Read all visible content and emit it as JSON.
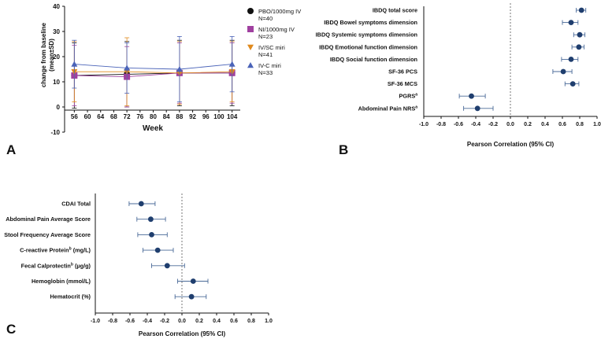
{
  "chart_data": [
    {
      "panel": "A",
      "type": "line",
      "ylabel": "change from baseline (mean±SD)",
      "xlabel": "Week",
      "xlim": [
        54,
        106
      ],
      "xticks": [
        56,
        60,
        64,
        68,
        72,
        76,
        80,
        84,
        88,
        92,
        96,
        100,
        104
      ],
      "ylim": [
        -10,
        40
      ],
      "yticks": [
        -10,
        0,
        10,
        20,
        30,
        40
      ],
      "series": [
        {
          "name": "PBO/1000mg IV",
          "n": "N=40",
          "color": "#111111",
          "marker": "circle",
          "x": [
            56,
            72,
            88,
            104
          ],
          "y": [
            12.5,
            13,
            13.5,
            13.5
          ],
          "sd": [
            13,
            13,
            13,
            13
          ]
        },
        {
          "name": "NI/1000mg IV",
          "n": "N=23",
          "color": "#a040a0",
          "marker": "square",
          "x": [
            56,
            72,
            88,
            104
          ],
          "y": [
            12.5,
            12,
            13.5,
            13.5
          ],
          "sd": [
            12,
            12,
            12,
            12
          ]
        },
        {
          "name": "IV/SC miri",
          "n": "N=41",
          "color": "#e08a1e",
          "marker": "triangle-down",
          "x": [
            56,
            72,
            88,
            104
          ],
          "y": [
            14,
            14,
            13.5,
            14
          ],
          "sd": [
            12,
            13.5,
            12.5,
            12
          ]
        },
        {
          "name": "IV-C miri",
          "n": "N=33",
          "color": "#4a63b8",
          "marker": "triangle-up",
          "x": [
            56,
            72,
            88,
            104
          ],
          "y": [
            17,
            15.5,
            15,
            17
          ],
          "sd": [
            9.5,
            10,
            13,
            11
          ]
        }
      ]
    },
    {
      "panel": "B",
      "type": "scatter",
      "xlabel": "Pearson Correlation (95% CI)",
      "xlim": [
        -1.0,
        1.0
      ],
      "xticks": [
        "-1.0",
        "-0.8",
        "-0.6",
        "-0.4",
        "-0.2",
        "0.0",
        "0.2",
        "0.4",
        "0.6",
        "0.8",
        "1.0"
      ],
      "categories": [
        "IBDQ total score",
        "IBDQ Bowel symptoms dimension",
        "IBDQ Systemic symptoms dimension",
        "IBDQ Emotional function dimension",
        "IBDQ Social function dimension",
        "SF-36 PCS",
        "SF-36 MCS",
        "PGRSa",
        "Abdominal Pain NRSa"
      ],
      "estimate": [
        0.82,
        0.7,
        0.8,
        0.79,
        0.7,
        0.61,
        0.72,
        -0.45,
        -0.38
      ],
      "ci_low": [
        0.76,
        0.6,
        0.73,
        0.71,
        0.59,
        0.49,
        0.63,
        -0.59,
        -0.54
      ],
      "ci_high": [
        0.87,
        0.78,
        0.86,
        0.85,
        0.78,
        0.71,
        0.79,
        -0.29,
        -0.2
      ]
    },
    {
      "panel": "C",
      "type": "scatter",
      "xlabel": "Pearson Correlation (95% CI)",
      "xlim": [
        -1.0,
        1.0
      ],
      "xticks": [
        "-1.0",
        "-0.8",
        "-0.6",
        "-0.4",
        "-0.2",
        "0.0",
        "0.2",
        "0.4",
        "0.6",
        "0.8",
        "1.0"
      ],
      "categories": [
        "CDAI Total",
        "Abdominal Pain Average Score",
        "Stool Frequency Average Score",
        "C-reactive Proteinb (mg/L)",
        "Fecal Calprotectinb (µg/g)",
        "Hemoglobin (mmol/L)",
        "Hematocrit (%)"
      ],
      "estimate": [
        -0.47,
        -0.36,
        -0.35,
        -0.28,
        -0.17,
        0.13,
        0.11
      ],
      "ci_low": [
        -0.61,
        -0.52,
        -0.51,
        -0.45,
        -0.35,
        -0.05,
        -0.08
      ],
      "ci_high": [
        -0.31,
        -0.19,
        -0.17,
        -0.1,
        0.03,
        0.3,
        0.28
      ]
    }
  ],
  "panels": [
    "A",
    "B",
    "C"
  ],
  "legend": {
    "items": [
      {
        "label": "PBO/1000mg IV",
        "n": "N=40"
      },
      {
        "label": "NI/1000mg IV",
        "n": "N=23"
      },
      {
        "label": "IV/SC miri",
        "n": "N=41"
      },
      {
        "label": "IV-C miri",
        "n": "N=33"
      }
    ]
  },
  "colors": {
    "forest_point": "#1f3e6e",
    "forest_ci": "#4a6a98",
    "zero_line": "#555555",
    "axis": "#111111"
  }
}
